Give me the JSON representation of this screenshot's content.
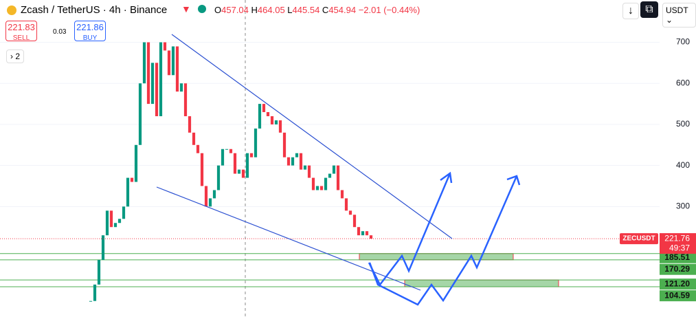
{
  "header": {
    "symbol": "Zcash / TetherUS · 4h · Binance",
    "open_label": "O",
    "open": "457.04",
    "high_label": "H",
    "high": "464.05",
    "low_label": "L",
    "low": "445.54",
    "close_label": "C",
    "close": "454.94",
    "change": "−2.01 (−0.44%)",
    "currency": "USDT"
  },
  "trade": {
    "sell_price": "221.83",
    "sell_label": "SELL",
    "spread": "0.03",
    "buy_price": "221.86",
    "buy_label": "BUY",
    "indicators_count": "2"
  },
  "chart_data": {
    "type": "candlestick",
    "values": [
      70,
      110,
      170,
      230,
      290,
      250,
      260,
      270,
      300,
      370,
      360,
      450,
      600,
      700,
      550,
      650,
      520,
      700,
      680,
      620,
      690,
      580,
      600,
      520,
      480,
      450,
      430,
      350,
      300,
      320,
      340,
      400,
      440,
      440,
      430,
      380,
      390,
      370,
      430,
      420,
      490,
      550,
      530,
      520,
      500,
      510,
      480,
      420,
      400,
      420,
      430,
      390,
      400,
      370,
      340,
      350,
      340,
      370,
      380,
      400,
      340,
      320,
      290,
      280,
      250,
      230,
      240,
      230,
      221.76
    ],
    "ylim": [
      31,
      803
    ],
    "yticks": [
      300,
      400,
      500,
      600,
      700
    ],
    "current": {
      "symbol": "ZECUSDT",
      "value": 221.76,
      "label": "221.76",
      "countdown": "49:37"
    },
    "levels": [
      185.51,
      170.29,
      121.2,
      104.59
    ],
    "level_labels": [
      "185.51",
      "170.29",
      "121.20",
      "104.59"
    ],
    "zones": [
      [
        170.29,
        185.51
      ],
      [
        104.59,
        121.2
      ]
    ]
  }
}
